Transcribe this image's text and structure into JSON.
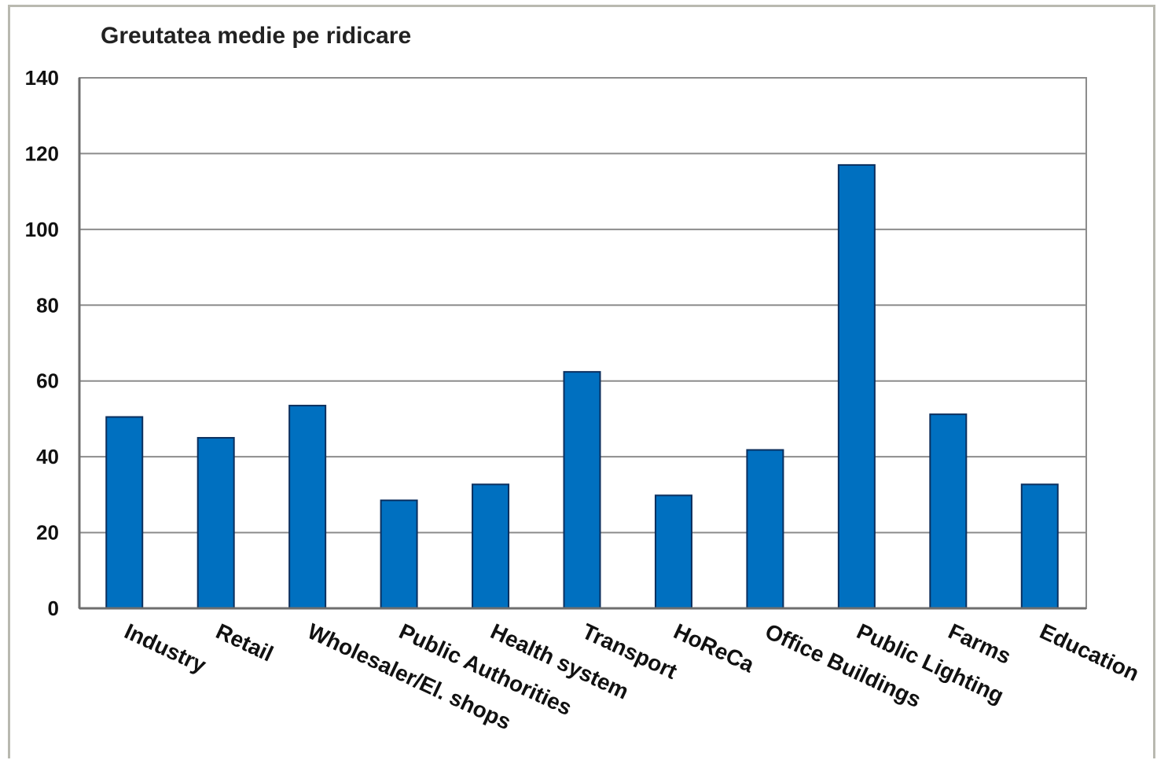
{
  "chart_data": {
    "type": "bar",
    "title": "Greutatea  medie pe ridicare",
    "xlabel": "",
    "ylabel": "",
    "categories": [
      "Industry",
      "Retail",
      "Wholesaler/El. shops",
      "Public Authorities",
      "Health system",
      "Transport",
      "HoReCa",
      "Office Buildings",
      "Public Lighting",
      "Farms",
      "Education"
    ],
    "values": [
      50.5,
      45,
      53.5,
      28.5,
      32.7,
      62.4,
      29.8,
      41.8,
      117,
      51.2,
      32.7
    ],
    "ylim": [
      0,
      140
    ],
    "yticks": [
      0,
      20,
      40,
      60,
      80,
      100,
      120,
      140
    ],
    "bar_color": "#0070c0",
    "grid": true,
    "legend": "none"
  }
}
